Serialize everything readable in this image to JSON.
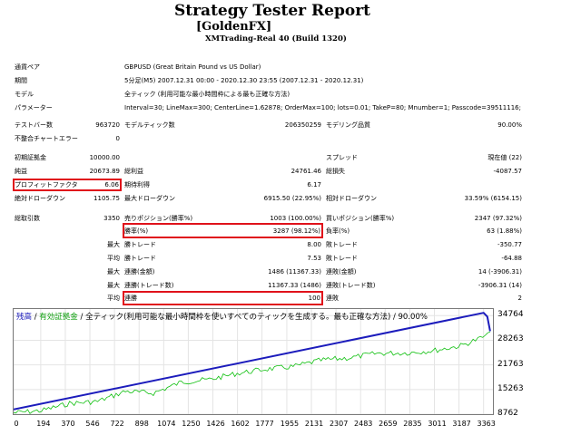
{
  "report": {
    "title": "Strategy Tester Report",
    "expert": "[GoldenFX]",
    "server": "XMTrading-Real 40 (Build 1320)"
  },
  "settings": [
    {
      "label": "通貨ペア",
      "value": "GBPUSD (Great Britain Pound vs US Dollar)"
    },
    {
      "label": "期間",
      "value": "5分足(M5) 2007.12.31 00:00 - 2020.12.30 23:55 (2007.12.31 - 2020.12.31)"
    },
    {
      "label": "モデル",
      "value": "全ティック (利用可能な最小時間枠による最も正確な方法)"
    },
    {
      "label": "パラメーター",
      "value": "Interval=30; LineMax=300; CenterLine=1.62878; OrderMax=100; lots=0.01; TakeP=80; Mnumber=1; Passcode=39511116;"
    }
  ],
  "stats": {
    "bars_label": "テストバー数",
    "bars_value": "963720",
    "ticks_label": "モデルティック数",
    "ticks_value": "206350259",
    "quality_label": "モデリング品質",
    "quality_value": "90.00%",
    "mismatch_label": "不整合チャートエラー",
    "mismatch_value": "0",
    "deposit_label": "初期証拠金",
    "deposit_value": "10000.00",
    "spread_label": "スプレッド",
    "spread_value": "現在値 (22)",
    "net_label": "純益",
    "net_value": "20673.89",
    "gross_profit_label": "総利益",
    "gross_profit_value": "24761.46",
    "gross_loss_label": "総損失",
    "gross_loss_value": "-4087.57",
    "pf_label": "プロフィットファクタ",
    "pf_value": "6.06",
    "payoff_label": "期待利得",
    "payoff_value": "6.17",
    "abs_dd_label": "絶対ドローダウン",
    "abs_dd_value": "1105.75",
    "max_dd_label": "最大ドローダウン",
    "max_dd_value": "6915.50 (22.95%)",
    "rel_dd_label": "相対ドローダウン",
    "rel_dd_value": "33.59% (6154.15)",
    "total_trades_label": "総取引数",
    "total_trades_value": "3350",
    "short_label": "売りポジション(勝率%)",
    "short_value": "1003 (100.00%)",
    "long_label": "買いポジション(勝率%)",
    "long_value": "2347 (97.32%)",
    "win_rate_label": "勝率(%)",
    "win_rate_value": "3287 (98.12%)",
    "loss_rate_label": "負率(%)",
    "loss_rate_value": "63 (1.88%)",
    "max_label": "最大",
    "avg_label": "平均",
    "max_win_label": "勝トレード",
    "max_win_value": "8.00",
    "max_loss_label": "敗トレード",
    "max_loss_value": "-350.77",
    "avg_win_label": "勝トレード",
    "avg_win_value": "7.53",
    "avg_loss_label": "敗トレード",
    "avg_loss_value": "-64.88",
    "cons_wins_amt_label": "連勝(金額)",
    "cons_wins_amt_value": "1486 (11367.33)",
    "cons_loss_amt_label": "連敗(金額)",
    "cons_loss_amt_value": "14 (-3906.31)",
    "cons_wins_tr_label": "連勝(トレード数)",
    "cons_wins_tr_value": "11367.33 (1486)",
    "cons_loss_tr_label": "連敗(トレード数)",
    "cons_loss_tr_value": "-3906.31 (14)",
    "avg_cons_win_label": "連勝",
    "avg_cons_win_value": "100",
    "avg_cons_loss_label": "連敗",
    "avg_cons_loss_value": "2"
  },
  "legend": {
    "balance": "残高",
    "sep1": " / ",
    "equity": "有効証拠金",
    "rest": " / 全ティック(利用可能な最小時間枠を使いすべてのティックを生成する。最も正確な方法) / 90.00%"
  },
  "colors": {
    "balance": "#1c1cbc",
    "equity": "#10c010",
    "highlight": "#e0121b"
  },
  "chart_data": {
    "type": "line",
    "x_ticks": [
      "0",
      "194",
      "370",
      "546",
      "722",
      "898",
      "1074",
      "1250",
      "1426",
      "1602",
      "1777",
      "1955",
      "2131",
      "2307",
      "2483",
      "2659",
      "2835",
      "3011",
      "3187",
      "3363"
    ],
    "y_ticks": [
      "34764",
      "28263",
      "21763",
      "15263",
      "8762"
    ],
    "xlim": [
      0,
      3430
    ],
    "ylim": [
      8762,
      36500
    ],
    "series": [
      {
        "name": "残高",
        "x": [
          0,
          3363,
          3390,
          3410
        ],
        "y": [
          10000,
          35500,
          34500,
          30673
        ]
      },
      {
        "name": "有効証拠金",
        "x": [
          0,
          200,
          400,
          600,
          800,
          1000,
          1200,
          1400,
          1600,
          1800,
          2000,
          2200,
          2400,
          2600,
          2800,
          3000,
          3200,
          3410
        ],
        "y": [
          9800,
          10400,
          12300,
          12800,
          15500,
          15000,
          17900,
          18600,
          20200,
          21300,
          22000,
          23700,
          24300,
          25500,
          25600,
          26200,
          27500,
          30500
        ]
      }
    ]
  }
}
